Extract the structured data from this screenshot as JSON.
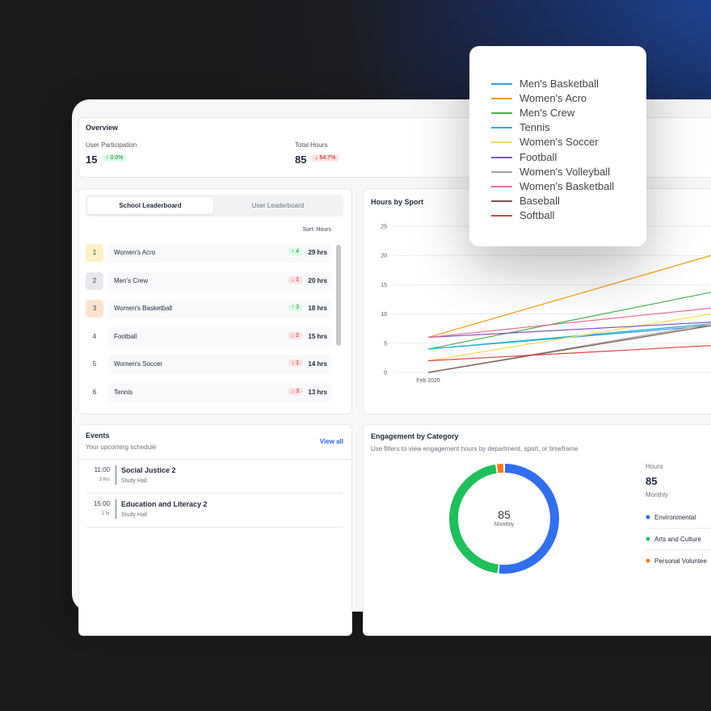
{
  "overview": {
    "title": "Overview",
    "stats": [
      {
        "label": "User Participation",
        "value": "15",
        "change": "↑ 0.0%",
        "trend": "up"
      },
      {
        "label": "Total Hours",
        "value": "85",
        "change": "↓ 64.7%",
        "trend": "down"
      }
    ]
  },
  "leaderboard": {
    "tabs": [
      "School Leaderboard",
      "User Leaderboard"
    ],
    "active_tab": 0,
    "sort": "Sort: Hours",
    "rows": [
      {
        "rank": "1",
        "name": "Women's Acro",
        "change": "↑ 4",
        "trend": "up",
        "hours": "29 hrs",
        "rank_color": "#fdf0c2"
      },
      {
        "rank": "2",
        "name": "Men's Crew",
        "change": "↓ 1",
        "trend": "down",
        "hours": "20 hrs",
        "rank_color": "#e5e7eb"
      },
      {
        "rank": "3",
        "name": "Women's Basketball",
        "change": "↑ 3",
        "trend": "up",
        "hours": "18 hrs",
        "rank_color": "#fde3cf"
      },
      {
        "rank": "4",
        "name": "Football",
        "change": "↓ 2",
        "trend": "down",
        "hours": "15 hrs"
      },
      {
        "rank": "5",
        "name": "Women's Soccer",
        "change": "↓ 1",
        "trend": "down",
        "hours": "14 hrs"
      },
      {
        "rank": "6",
        "name": "Tennis",
        "change": "↓ 3",
        "trend": "down",
        "hours": "13 hrs"
      }
    ]
  },
  "events": {
    "title": "Events",
    "subtitle": "Your upcoming schedule",
    "link": "View all",
    "items": [
      {
        "time": "11:00",
        "duration": "3 hrs",
        "title": "Social Justice 2",
        "location": "Study Hall"
      },
      {
        "time": "15:00",
        "duration": "1 hr",
        "title": "Education and Literacy 2",
        "location": "Study Hall"
      }
    ]
  },
  "chart_data": [
    {
      "type": "line",
      "title": "Hours by Sport",
      "categories": [
        "Feb 2026",
        null
      ],
      "ylim": [
        0,
        25
      ],
      "yticks": [
        0,
        5,
        10,
        15,
        20,
        25
      ],
      "grid": true,
      "series": [
        {
          "name": "Men's Basketball",
          "color": "#3b9be8",
          "values": [
            4,
            8
          ]
        },
        {
          "name": "Women's Acro",
          "color": "#f39c12",
          "values": [
            6,
            20
          ]
        },
        {
          "name": "Men's Crew",
          "color": "#4caf50",
          "values": [
            4,
            13.7
          ]
        },
        {
          "name": "Tennis",
          "color": "#17b3d6",
          "values": [
            4,
            8.3
          ]
        },
        {
          "name": "Women's Soccer",
          "color": "#f0e04a",
          "values": [
            2,
            10
          ]
        },
        {
          "name": "Football",
          "color": "#7e57c2",
          "values": [
            6,
            8.6
          ]
        },
        {
          "name": "Women's Volleyball",
          "color": "#a3a3a3",
          "values": [
            0,
            8.3
          ]
        },
        {
          "name": "Women's Basketball",
          "color": "#e96b9a",
          "values": [
            6,
            11
          ]
        },
        {
          "name": "Baseball",
          "color": "#795548",
          "values": [
            0,
            8
          ]
        },
        {
          "name": "Softball",
          "color": "#e53e3e",
          "values": [
            2,
            4.6
          ]
        }
      ]
    },
    {
      "type": "pie",
      "donut": true,
      "title": "Engagement by Category",
      "subtitle": "Use filters to view engagement hours by department, sport, or timeframe",
      "center_value": "85",
      "center_label": "Monthly",
      "summary": {
        "label": "Hours",
        "value": "85",
        "period": "Monthly"
      },
      "categories": [
        "Environmental",
        "Arts and Culture",
        "Personal Voluntee"
      ],
      "values": [
        44,
        39,
        2
      ],
      "colors": [
        "#2f6ff0",
        "#1ec05a",
        "#f57c1f"
      ]
    }
  ]
}
